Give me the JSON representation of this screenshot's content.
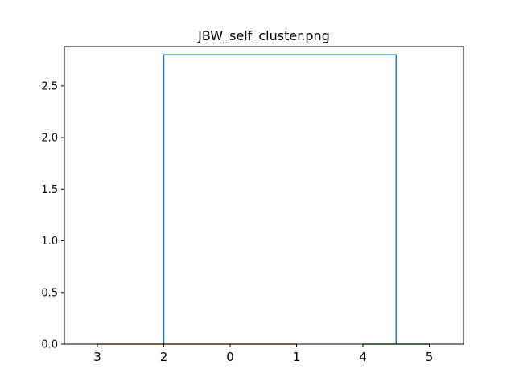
{
  "chart_data": {
    "type": "dendrogram",
    "title": "JBW_self_cluster.png",
    "xlabel": "",
    "ylabel": "",
    "ylim": [
      0,
      2.88
    ],
    "yticks": [
      "0.0",
      "0.5",
      "1.0",
      "1.5",
      "2.0",
      "2.5"
    ],
    "ytick_values": [
      0,
      0.5,
      1.0,
      1.5,
      2.0,
      2.5
    ],
    "leaf_labels": [
      "3",
      "2",
      "0",
      "1",
      "4",
      "5"
    ],
    "links": [
      {
        "name": "cluster-orange",
        "color": "#ff7f0e",
        "left": 0,
        "right": 3,
        "height": 0.0
      },
      {
        "name": "cluster-green",
        "color": "#2ca02c",
        "left": 4,
        "right": 5,
        "height": 0.0
      },
      {
        "name": "root-link",
        "color": "#1f77b4",
        "left": 1.0,
        "right": 4.5,
        "height": 2.8
      }
    ],
    "grid": false
  }
}
